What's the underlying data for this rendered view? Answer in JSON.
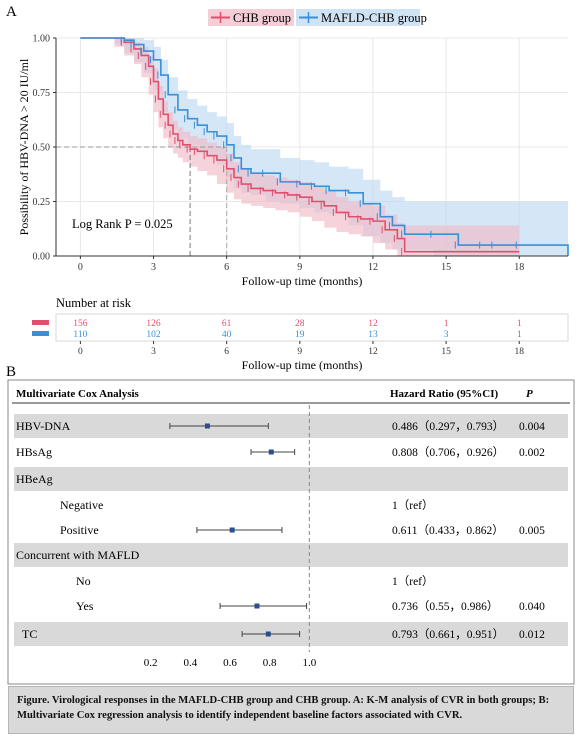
{
  "panel_a_label": "A",
  "panel_b_label": "B",
  "caption": "Figure. Virological responses in the MAFLD-CHB group and CHB group. A: K-M analysis of CVR in both groups; B: Multivariate Cox regression analysis to identify independent baseline factors associated with CVR.",
  "colors": {
    "chb": "#e0506e",
    "chb_band": "#f0b8c4",
    "mafld": "#3a8fd6",
    "mafld_band": "#bcd7f1",
    "row_band": "#d9d9d9",
    "marker": "#2b4f8a"
  },
  "chart_data": [
    {
      "type": "line",
      "chart": "kaplan-meier",
      "title": "",
      "xlabel": "Follow-up time (months)",
      "ylabel": "Possibility of HBV-DNA > 20 IU/ml",
      "xlim": [
        -1,
        20
      ],
      "ylim": [
        0,
        1.0
      ],
      "x_ticks": [
        0,
        3,
        6,
        9,
        12,
        15,
        18
      ],
      "y_ticks": [
        "0.00",
        "0.25",
        "0.50",
        "0.75",
        "1.00"
      ],
      "legend_position": "top",
      "annotation": "Log Rank P = 0.025",
      "median_times": [
        4.5,
        6.0
      ],
      "series": [
        {
          "name": "CHB group",
          "x": [
            0,
            1.4,
            1.8,
            2.2,
            2.5,
            2.8,
            3.0,
            3.2,
            3.4,
            3.6,
            3.8,
            4.0,
            4.2,
            4.5,
            4.8,
            5.2,
            5.6,
            6.0,
            6.3,
            6.6,
            7.0,
            7.5,
            8.0,
            8.5,
            9.0,
            9.5,
            10.0,
            10.5,
            11.0,
            11.5,
            12.0,
            12.5,
            13.0,
            13.3,
            18.0
          ],
          "y": [
            1.0,
            1.0,
            0.98,
            0.95,
            0.92,
            0.87,
            0.8,
            0.72,
            0.65,
            0.6,
            0.56,
            0.53,
            0.51,
            0.49,
            0.48,
            0.46,
            0.44,
            0.4,
            0.36,
            0.33,
            0.31,
            0.3,
            0.29,
            0.28,
            0.27,
            0.25,
            0.23,
            0.2,
            0.18,
            0.17,
            0.16,
            0.12,
            0.08,
            0.02,
            0.02
          ],
          "lower": [
            1.0,
            1.0,
            0.96,
            0.92,
            0.88,
            0.82,
            0.74,
            0.66,
            0.59,
            0.54,
            0.5,
            0.47,
            0.45,
            0.43,
            0.41,
            0.39,
            0.37,
            0.33,
            0.29,
            0.26,
            0.24,
            0.23,
            0.22,
            0.21,
            0.2,
            0.18,
            0.16,
            0.13,
            0.11,
            0.1,
            0.09,
            0.06,
            0.03,
            0.0,
            0.0
          ],
          "upper": [
            1.0,
            1.0,
            1.0,
            0.98,
            0.96,
            0.92,
            0.86,
            0.78,
            0.71,
            0.66,
            0.62,
            0.59,
            0.57,
            0.55,
            0.54,
            0.52,
            0.5,
            0.47,
            0.43,
            0.4,
            0.38,
            0.37,
            0.36,
            0.35,
            0.34,
            0.32,
            0.3,
            0.27,
            0.25,
            0.24,
            0.23,
            0.19,
            0.15,
            0.14,
            0.14
          ]
        },
        {
          "name": "MAFLD-CHB group",
          "x": [
            0,
            1.4,
            1.8,
            2.2,
            2.6,
            3.0,
            3.3,
            3.6,
            4.0,
            4.4,
            4.8,
            5.2,
            5.6,
            6.0,
            6.3,
            6.6,
            7.0,
            7.6,
            8.2,
            9.0,
            9.6,
            10.2,
            11.0,
            11.6,
            12.3,
            12.8,
            13.3,
            14.5,
            15.5,
            16.5,
            17.0,
            18.0,
            20.0
          ],
          "y": [
            1.0,
            1.0,
            0.99,
            0.97,
            0.94,
            0.9,
            0.83,
            0.74,
            0.67,
            0.63,
            0.6,
            0.57,
            0.55,
            0.51,
            0.45,
            0.4,
            0.38,
            0.38,
            0.34,
            0.33,
            0.32,
            0.3,
            0.29,
            0.24,
            0.18,
            0.14,
            0.1,
            0.1,
            0.05,
            0.05,
            0.05,
            0.05,
            0.0
          ],
          "lower": [
            1.0,
            1.0,
            0.97,
            0.93,
            0.89,
            0.84,
            0.76,
            0.66,
            0.58,
            0.54,
            0.51,
            0.48,
            0.46,
            0.42,
            0.36,
            0.31,
            0.29,
            0.28,
            0.25,
            0.24,
            0.22,
            0.2,
            0.19,
            0.14,
            0.09,
            0.06,
            0.03,
            0.03,
            0.0,
            0.0,
            0.0,
            0.0,
            0.0
          ],
          "upper": [
            1.0,
            1.0,
            1.0,
            1.0,
            0.99,
            0.96,
            0.9,
            0.82,
            0.76,
            0.72,
            0.69,
            0.66,
            0.64,
            0.61,
            0.55,
            0.51,
            0.49,
            0.49,
            0.45,
            0.44,
            0.43,
            0.41,
            0.4,
            0.35,
            0.3,
            0.27,
            0.25,
            0.25,
            0.25,
            0.25,
            0.25,
            0.25,
            0.25
          ]
        }
      ],
      "risk_table": {
        "title": "Number at risk",
        "x": [
          0,
          3,
          6,
          9,
          12,
          15,
          18
        ],
        "xlabel": "Follow-up time (months)",
        "rows": [
          {
            "name": "CHB group",
            "values": [
              "156",
              "126",
              "61",
              "28",
              "12",
              "1",
              "1"
            ]
          },
          {
            "name": "MAFLD-CHB group",
            "values": [
              "110",
              "102",
              "40",
              "19",
              "13",
              "3",
              "1"
            ]
          }
        ]
      }
    },
    {
      "type": "forest",
      "title": "Multivariate Cox Analysis",
      "hr_header": "Hazard Ratio (95%CI)",
      "p_header": "P",
      "x_ticks": [
        "0.2",
        "0.4",
        "0.6",
        "0.8",
        "1.0"
      ],
      "x_tick_values": [
        0.2,
        0.4,
        0.6,
        0.8,
        1.0
      ],
      "xlim": [
        0.0,
        1.2
      ],
      "reference": 1.0,
      "rows": [
        {
          "label": "HBV-DNA",
          "indent": 0,
          "shaded": true,
          "hr": 0.486,
          "lo": 0.297,
          "hi": 0.793,
          "text": "0.486（0.297，0.793）",
          "p": "0.004"
        },
        {
          "label": "HBsAg",
          "indent": 0,
          "shaded": false,
          "hr": 0.808,
          "lo": 0.706,
          "hi": 0.926,
          "text": "0.808（0.706，0.926）",
          "p": "0.002"
        },
        {
          "label": "HBeAg",
          "indent": 0,
          "shaded": true,
          "hr": null,
          "text": "",
          "p": ""
        },
        {
          "label": "Negative",
          "indent": 2,
          "shaded": false,
          "hr": null,
          "text": "1（ref）",
          "p": ""
        },
        {
          "label": "Positive",
          "indent": 2,
          "shaded": false,
          "hr": 0.611,
          "lo": 0.433,
          "hi": 0.862,
          "text": "0.611（0.433，0.862）",
          "p": "0.005"
        },
        {
          "label": "Concurrent with MAFLD",
          "indent": 0,
          "shaded": true,
          "hr": null,
          "text": "",
          "p": ""
        },
        {
          "label": "No",
          "indent": 3,
          "shaded": false,
          "hr": null,
          "text": "1（ref）",
          "p": ""
        },
        {
          "label": "Yes",
          "indent": 3,
          "shaded": false,
          "hr": 0.736,
          "lo": 0.55,
          "hi": 0.986,
          "text": "0.736（0.55，0.986）",
          "p": "0.040"
        },
        {
          "label": "TC",
          "indent": 0,
          "shaded": true,
          "hr": 0.793,
          "lo": 0.661,
          "hi": 0.951,
          "text": "0.793（0.661，0.951）",
          "p": "0.012"
        }
      ]
    }
  ]
}
